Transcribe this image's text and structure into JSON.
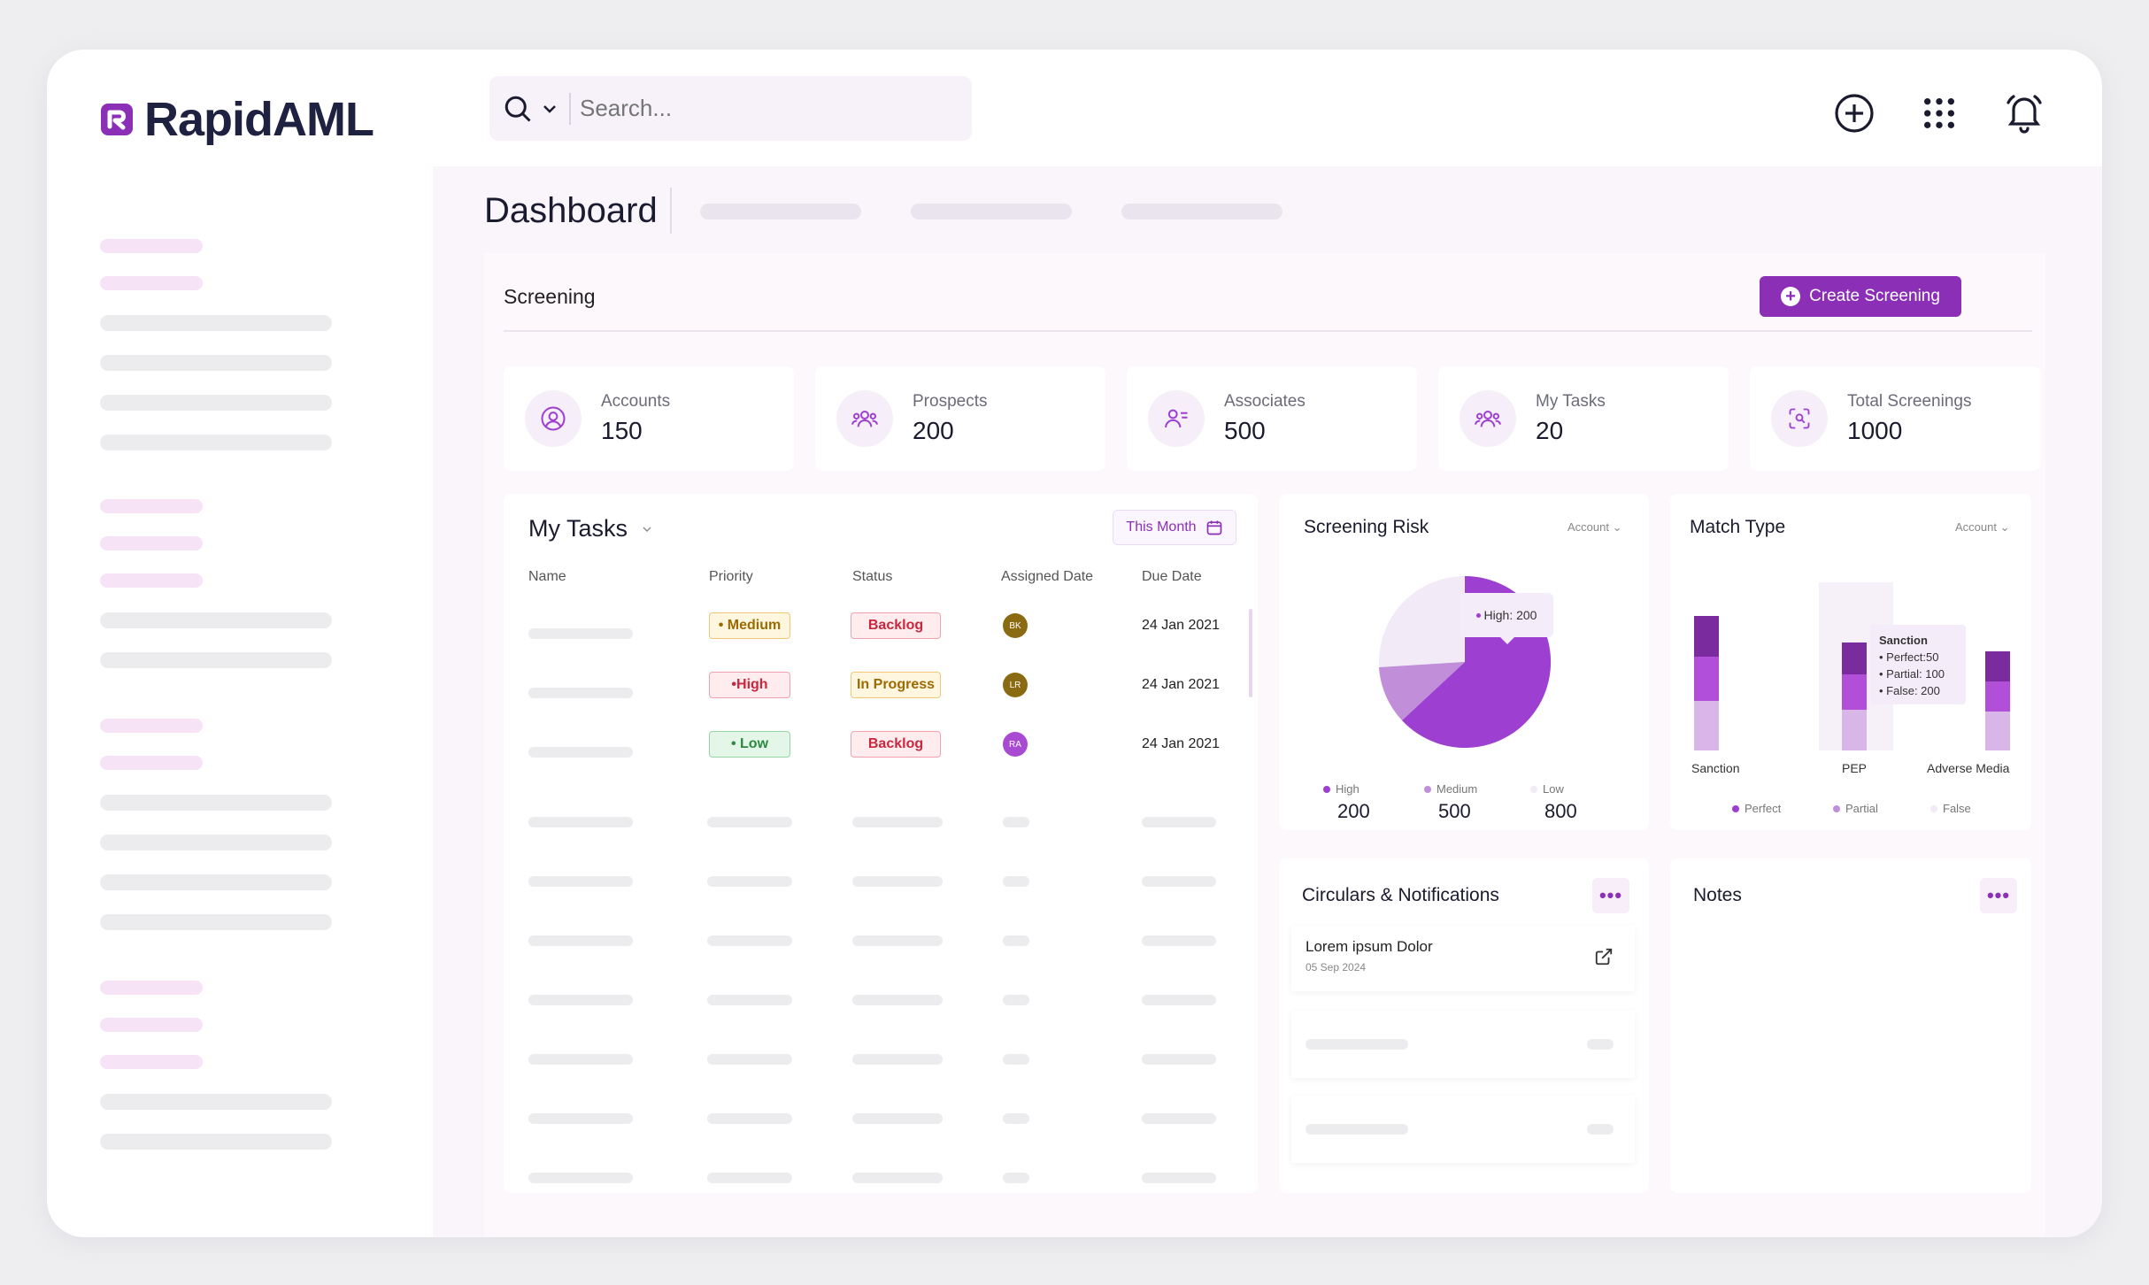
{
  "app": {
    "name": "RapidAML"
  },
  "search": {
    "placeholder": "Search..."
  },
  "page": {
    "title": "Dashboard"
  },
  "screening": {
    "title": "Screening",
    "create_label": "Create Screening",
    "stats": [
      {
        "label": "Accounts",
        "value": "150",
        "icon": "user-circle-icon"
      },
      {
        "label": "Prospects",
        "value": "200",
        "icon": "users-group-icon"
      },
      {
        "label": "Associates",
        "value": "500",
        "icon": "user-list-icon"
      },
      {
        "label": "My Tasks",
        "value": "20",
        "icon": "users-group-icon"
      },
      {
        "label": "Total Screenings",
        "value": "1000",
        "icon": "scan-face-icon"
      }
    ]
  },
  "tasks": {
    "title": "My Tasks",
    "filter_label": "This Month",
    "columns": [
      "Name",
      "Priority",
      "Status",
      "Assigned Date",
      "Due Date"
    ],
    "rows": [
      {
        "priority": "• Medium",
        "status": "Backlog",
        "assignee": "BK",
        "due": "24 Jan 2021"
      },
      {
        "priority": "•High",
        "status": "In Progress",
        "assignee": "LR",
        "due": "24 Jan 2021"
      },
      {
        "priority": "• Low",
        "status": "Backlog",
        "assignee": "RA",
        "due": "24 Jan 2021"
      }
    ]
  },
  "risk": {
    "title": "Screening Risk",
    "dropdown": "Account",
    "tooltip": "High: 200",
    "legend": [
      {
        "label": "High",
        "value": "200",
        "color": "#9d3fd0"
      },
      {
        "label": "Medium",
        "value": "500",
        "color": "#c18ed9"
      },
      {
        "label": "Low",
        "value": "800",
        "color": "#f2eaf7"
      }
    ]
  },
  "match": {
    "title": "Match Type",
    "dropdown": "Account",
    "categories": [
      "Sanction",
      "PEP",
      "Adverse Media"
    ],
    "tooltip": {
      "title": "Sanction",
      "lines": [
        "Perfect:50",
        "Partial: 100",
        "False: 200"
      ]
    },
    "legend": [
      {
        "label": "Perfect",
        "color": "#9d3fd0"
      },
      {
        "label": "Partial",
        "color": "#c18ed9"
      },
      {
        "label": "False",
        "color": "#f2eaf7"
      }
    ]
  },
  "circulars": {
    "title": "Circulars & Notifications",
    "items": [
      {
        "title": "Lorem ipsum Dolor",
        "date": "05 Sep 2024"
      }
    ]
  },
  "notes": {
    "title": "Notes"
  },
  "colors": {
    "accent": "#8b2fb6",
    "brand_dark": "#1e2140"
  }
}
